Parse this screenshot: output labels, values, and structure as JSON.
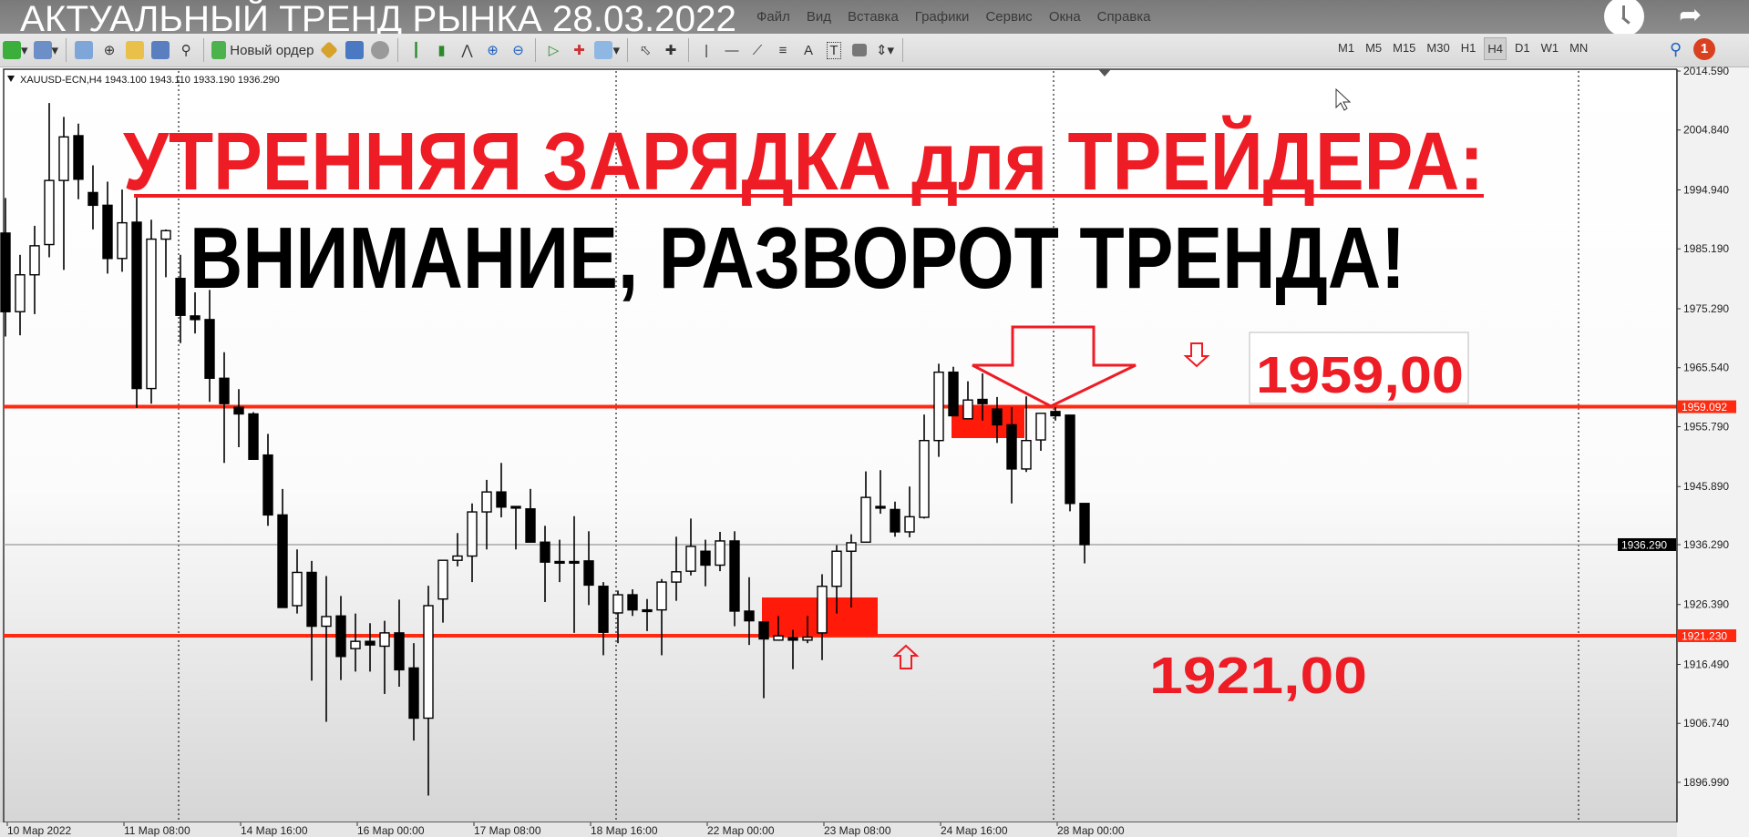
{
  "video_title": "АКТУАЛЬНЫЙ ТРЕНД РЫНКА 28.03.2022",
  "menu": [
    "Файл",
    "Вид",
    "Вставка",
    "Графики",
    "Сервис",
    "Окна",
    "Справка"
  ],
  "toolbar": {
    "new_order_label": "Новый ордер",
    "timeframes": [
      "M1",
      "M5",
      "M15",
      "M30",
      "H1",
      "H4",
      "D1",
      "W1",
      "MN"
    ],
    "active_timeframe": "H4",
    "notification_count": "1"
  },
  "chart_info": "XAUUSD-ECN,H4  1943.100 1943.110 1933.190 1936.290",
  "annotations": {
    "headline": "УТРЕННЯЯ ЗАРЯДКА для ТРЕЙДЕРА:",
    "subheadline": "ВНИМАНИЕ, РАЗВОРОТ ТРЕНДА!",
    "resistance_label": "1959,00",
    "support_label": "1921,00",
    "accent_color": "#ee1c24"
  },
  "chart_data": {
    "type": "candlestick",
    "symbol": "XAUUSD-ECN",
    "timeframe": "H4",
    "ylim": [
      1896.99,
      2014.59
    ],
    "y_ticks": [
      "2014.590",
      "2004.840",
      "1994.940",
      "1985.190",
      "1975.290",
      "1965.540",
      "1955.790",
      "1945.890",
      "1936.290",
      "1926.390",
      "1916.490",
      "1906.740",
      "1896.990"
    ],
    "x_labels": [
      "10 Мар 2022",
      "11 Мар 08:00",
      "14 Мар 16:00",
      "16 Мар 00:00",
      "17 Мар 08:00",
      "18 Мар 16:00",
      "22 Мар 00:00",
      "23 Мар 08:00",
      "24 Мар 16:00",
      "28 Мар 00:00"
    ],
    "levels": [
      {
        "price": 1959.092,
        "label": "1959.092",
        "color": "#ff2a10"
      },
      {
        "price": 1936.29,
        "label": "1936.290",
        "color": "#000000"
      },
      {
        "price": 1921.23,
        "label": "1921.230",
        "color": "#ff2a10"
      }
    ],
    "ohlc": [
      [
        1987.8,
        1993.6,
        1970.7,
        1974.8
      ],
      [
        1974.8,
        1984.2,
        1970.9,
        1980.9
      ],
      [
        1980.9,
        1989.0,
        1974.4,
        1985.7
      ],
      [
        1985.9,
        2009.3,
        1983.8,
        1996.5
      ],
      [
        1996.5,
        2007.0,
        1981.7,
        2003.7
      ],
      [
        2003.9,
        2005.9,
        1993.4,
        1996.7
      ],
      [
        1994.5,
        1999.0,
        1988.4,
        1992.4
      ],
      [
        1992.4,
        1996.3,
        1981.1,
        1983.6
      ],
      [
        1983.6,
        1995.0,
        1981.4,
        1989.5
      ],
      [
        1989.6,
        1994.0,
        1958.9,
        1962.1
      ],
      [
        1962.1,
        1990.0,
        1959.6,
        1986.8
      ],
      [
        1986.8,
        1988.4,
        1980.5,
        1988.2
      ],
      [
        1980.3,
        1984.2,
        1969.6,
        1974.2
      ],
      [
        1974.1,
        1978.0,
        1971.2,
        1973.5
      ],
      [
        1973.5,
        1978.4,
        1959.9,
        1963.8
      ],
      [
        1963.8,
        1968.1,
        1949.8,
        1959.6
      ],
      [
        1959.0,
        1962.0,
        1952.4,
        1957.9
      ],
      [
        1957.9,
        1958.2,
        1950.4,
        1950.4
      ],
      [
        1951.1,
        1954.6,
        1939.4,
        1941.2
      ],
      [
        1941.2,
        1945.5,
        1925.9,
        1925.9
      ],
      [
        1926.2,
        1935.5,
        1924.9,
        1931.7
      ],
      [
        1931.7,
        1933.6,
        1913.8,
        1922.8
      ],
      [
        1922.8,
        1931.1,
        1907.0,
        1924.4
      ],
      [
        1924.5,
        1927.8,
        1913.9,
        1917.8
      ],
      [
        1919.1,
        1924.9,
        1915.3,
        1920.3
      ],
      [
        1920.3,
        1923.3,
        1915.3,
        1919.7
      ],
      [
        1919.5,
        1923.7,
        1911.6,
        1921.7
      ],
      [
        1921.7,
        1927.2,
        1912.8,
        1915.6
      ],
      [
        1915.9,
        1920.0,
        1903.9,
        1907.6
      ],
      [
        1907.6,
        1929.5,
        1894.8,
        1926.2
      ],
      [
        1927.3,
        1933.7,
        1923.4,
        1933.7
      ],
      [
        1933.7,
        1938.2,
        1932.7,
        1934.4
      ],
      [
        1934.4,
        1943.1,
        1930.1,
        1941.7
      ],
      [
        1941.7,
        1947.0,
        1935.5,
        1945.0
      ],
      [
        1945.0,
        1949.8,
        1940.8,
        1942.5
      ],
      [
        1942.6,
        1942.6,
        1935.5,
        1942.4
      ],
      [
        1942.2,
        1945.5,
        1936.7,
        1936.7
      ],
      [
        1936.7,
        1939.4,
        1926.8,
        1933.4
      ],
      [
        1933.5,
        1937.1,
        1930.1,
        1933.4
      ],
      [
        1933.5,
        1941.0,
        1921.7,
        1933.4
      ],
      [
        1933.6,
        1938.5,
        1926.3,
        1929.6
      ],
      [
        1929.4,
        1930.1,
        1918.0,
        1921.8
      ],
      [
        1925.0,
        1928.7,
        1920.0,
        1928.0
      ],
      [
        1928.0,
        1928.9,
        1924.5,
        1925.5
      ],
      [
        1925.5,
        1927.3,
        1922.0,
        1925.4
      ],
      [
        1925.5,
        1930.6,
        1918.0,
        1930.1
      ],
      [
        1930.1,
        1937.6,
        1927.0,
        1931.8
      ],
      [
        1931.9,
        1940.6,
        1931.2,
        1936.0
      ],
      [
        1935.2,
        1937.1,
        1929.4,
        1932.9
      ],
      [
        1932.9,
        1938.4,
        1931.9,
        1936.9
      ],
      [
        1936.9,
        1938.5,
        1922.8,
        1925.3
      ],
      [
        1925.3,
        1930.9,
        1919.7,
        1923.7
      ],
      [
        1923.5,
        1923.5,
        1910.9,
        1920.7
      ],
      [
        1920.5,
        1924.5,
        1920.4,
        1921.2
      ],
      [
        1920.9,
        1922.2,
        1915.7,
        1920.5
      ],
      [
        1920.5,
        1924.5,
        1920.0,
        1921.0
      ],
      [
        1921.7,
        1931.4,
        1917.2,
        1929.4
      ],
      [
        1929.4,
        1936.2,
        1924.9,
        1935.2
      ],
      [
        1935.2,
        1938.0,
        1925.9,
        1936.6
      ],
      [
        1936.7,
        1948.4,
        1936.7,
        1944.1
      ],
      [
        1942.6,
        1948.6,
        1941.4,
        1942.4
      ],
      [
        1942.1,
        1943.4,
        1937.6,
        1938.4
      ],
      [
        1938.4,
        1945.9,
        1937.5,
        1940.9
      ],
      [
        1940.8,
        1957.8,
        1940.6,
        1953.5
      ],
      [
        1953.5,
        1966.2,
        1950.8,
        1964.8
      ],
      [
        1964.8,
        1965.7,
        1957.6,
        1957.6
      ],
      [
        1957.1,
        1963.3,
        1957.1,
        1960.2
      ],
      [
        1960.3,
        1964.6,
        1956.8,
        1959.6
      ],
      [
        1958.7,
        1960.7,
        1953.1,
        1956.1
      ],
      [
        1956.1,
        1959.0,
        1943.1,
        1948.8
      ],
      [
        1948.8,
        1960.8,
        1948.3,
        1953.5
      ],
      [
        1953.6,
        1958.0,
        1951.8,
        1958.0
      ],
      [
        1958.3,
        1959.0,
        1956.8,
        1957.6
      ],
      [
        1957.7,
        1957.7,
        1941.8,
        1943.1
      ],
      [
        1943.1,
        1943.11,
        1933.19,
        1936.29
      ]
    ]
  }
}
